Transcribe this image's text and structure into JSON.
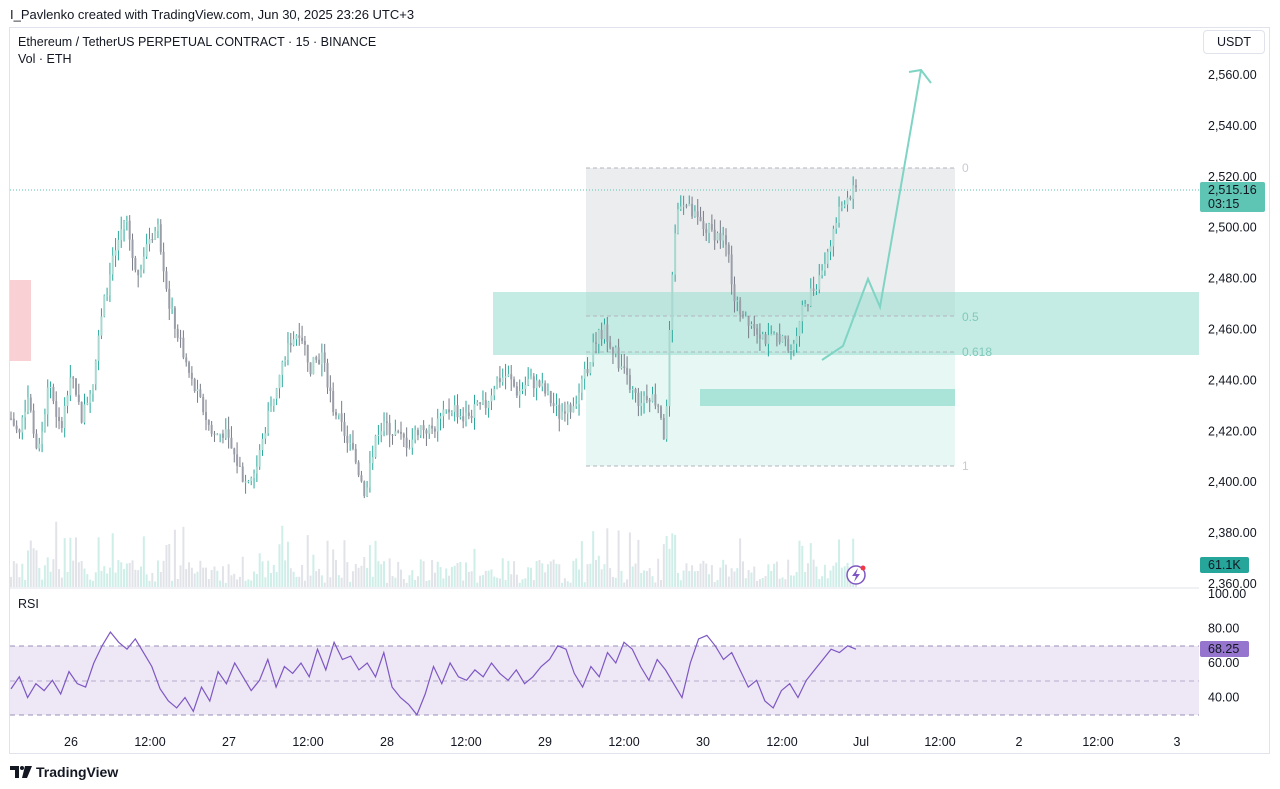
{
  "header": {
    "author_line": "I_Pavlenko created with TradingView.com, Jun 30, 2025 23:26 UTC+3",
    "symbol_line": "Ethereum / TetherUS PERPETUAL CONTRACT · 15 · BINANCE",
    "volume_line": "Vol · ETH",
    "currency_button": "USDT"
  },
  "footer": {
    "brand": "TradingView"
  },
  "colors": {
    "up": "#26a69a",
    "down": "#787b86",
    "zone": "#2bbfa4",
    "rsi": "#7e57c2",
    "rsi_band": "#ede7f6",
    "price_badge": "#5ec4b3",
    "rsi_badge": "#9575cd",
    "vol_badge": "#26a69a",
    "bearish_box": "#f8c9cc"
  },
  "icons": {
    "alert": "lightning-icon",
    "logo": "tradingview-logo-icon"
  },
  "chart_data": [
    {
      "type": "candlestick",
      "title": "Ethereum / TetherUS PERPETUAL CONTRACT · 15 · BINANCE",
      "x_ticks": [
        "26",
        "12:00",
        "27",
        "12:00",
        "28",
        "12:00",
        "29",
        "12:00",
        "30",
        "12:00",
        "Jul",
        "12:00",
        "2",
        "12:00",
        "3"
      ],
      "y_ticks": [
        "2,560.00",
        "2,540.00",
        "2,520.00",
        "2,500.00",
        "2,480.00",
        "2,460.00",
        "2,440.00",
        "2,420.00",
        "2,400.00",
        "2,380.00",
        "2,360.00"
      ],
      "ylim": [
        2360,
        2560
      ],
      "last_price": "2,515.16",
      "countdown": "03:15",
      "price_path_close": [
        [
          0,
          2425
        ],
        [
          3,
          2418
        ],
        [
          6,
          2435
        ],
        [
          10,
          2410
        ],
        [
          14,
          2440
        ],
        [
          18,
          2420
        ],
        [
          22,
          2445
        ],
        [
          26,
          2425
        ],
        [
          30,
          2440
        ],
        [
          34,
          2470
        ],
        [
          38,
          2490
        ],
        [
          42,
          2505
        ],
        [
          46,
          2480
        ],
        [
          50,
          2495
        ],
        [
          54,
          2500
        ],
        [
          58,
          2470
        ],
        [
          62,
          2455
        ],
        [
          66,
          2440
        ],
        [
          70,
          2430
        ],
        [
          74,
          2418
        ],
        [
          78,
          2420
        ],
        [
          82,
          2410
        ],
        [
          86,
          2400
        ],
        [
          90,
          2405
        ],
        [
          94,
          2425
        ],
        [
          98,
          2440
        ],
        [
          102,
          2455
        ],
        [
          106,
          2460
        ],
        [
          110,
          2445
        ],
        [
          114,
          2450
        ],
        [
          118,
          2430
        ],
        [
          122,
          2420
        ],
        [
          126,
          2410
        ],
        [
          130,
          2395
        ],
        [
          134,
          2420
        ],
        [
          138,
          2422
        ],
        [
          142,
          2418
        ],
        [
          146,
          2415
        ],
        [
          150,
          2422
        ],
        [
          154,
          2420
        ],
        [
          158,
          2425
        ],
        [
          162,
          2430
        ],
        [
          166,
          2425
        ],
        [
          170,
          2428
        ],
        [
          174,
          2430
        ],
        [
          178,
          2440
        ],
        [
          182,
          2442
        ],
        [
          186,
          2435
        ],
        [
          190,
          2440
        ],
        [
          194,
          2438
        ],
        [
          198,
          2432
        ],
        [
          202,
          2425
        ],
        [
          206,
          2430
        ],
        [
          210,
          2440
        ],
        [
          214,
          2455
        ],
        [
          218,
          2460
        ],
        [
          222,
          2450
        ],
        [
          226,
          2440
        ],
        [
          230,
          2432
        ],
        [
          234,
          2435
        ],
        [
          238,
          2430
        ],
        [
          240,
          2415
        ],
        [
          242,
          2470
        ],
        [
          244,
          2505
        ],
        [
          246,
          2512
        ],
        [
          248,
          2508
        ],
        [
          250,
          2505
        ],
        [
          254,
          2500
        ],
        [
          258,
          2498
        ],
        [
          262,
          2495
        ],
        [
          266,
          2470
        ],
        [
          270,
          2465
        ],
        [
          274,
          2460
        ],
        [
          278,
          2455
        ],
        [
          282,
          2458
        ],
        [
          286,
          2450
        ],
        [
          290,
          2468
        ],
        [
          294,
          2475
        ],
        [
          298,
          2485
        ],
        [
          302,
          2500
        ],
        [
          306,
          2512
        ],
        [
          310,
          2515
        ]
      ],
      "fib_retracement": {
        "levels": [
          {
            "label": "0",
            "price": 2523
          },
          {
            "label": "0.5",
            "price": 2465
          },
          {
            "label": "0.618",
            "price": 2451
          },
          {
            "label": "1",
            "price": 2406
          }
        ]
      },
      "zones": [
        {
          "name": "support-zone-upper",
          "from": 2450,
          "to": 2474
        },
        {
          "name": "support-zone-lower",
          "from": 2430,
          "to": 2436
        }
      ],
      "projection_path": [
        [
          2450,
          "start"
        ],
        [
          2465,
          ""
        ],
        [
          2455,
          ""
        ],
        [
          2562,
          "target"
        ]
      ]
    },
    {
      "type": "bar",
      "title": "Vol · ETH",
      "last_value": "61.1K"
    },
    {
      "type": "line",
      "title": "RSI",
      "y_ticks": [
        "100.00",
        "80.00",
        "60.00",
        "40.00"
      ],
      "ylim": [
        20,
        100
      ],
      "band": [
        30,
        70
      ],
      "mid": 50,
      "last_value": "68.25",
      "values": [
        45,
        52,
        40,
        48,
        44,
        50,
        42,
        55,
        48,
        46,
        60,
        70,
        78,
        72,
        68,
        74,
        66,
        58,
        45,
        38,
        34,
        40,
        32,
        46,
        38,
        55,
        48,
        60,
        52,
        44,
        50,
        62,
        46,
        58,
        54,
        60,
        52,
        68,
        56,
        72,
        62,
        64,
        56,
        60,
        52,
        66,
        46,
        40,
        36,
        30,
        42,
        58,
        48,
        60,
        52,
        50,
        56,
        52,
        60,
        54,
        50,
        56,
        48,
        52,
        58,
        62,
        70,
        68,
        54,
        46,
        58,
        52,
        66,
        60,
        72,
        68,
        58,
        50,
        62,
        56,
        48,
        40,
        60,
        74,
        76,
        70,
        62,
        66,
        56,
        46,
        50,
        38,
        34,
        44,
        48,
        40,
        50,
        56,
        62,
        68,
        66,
        70,
        68
      ]
    }
  ]
}
